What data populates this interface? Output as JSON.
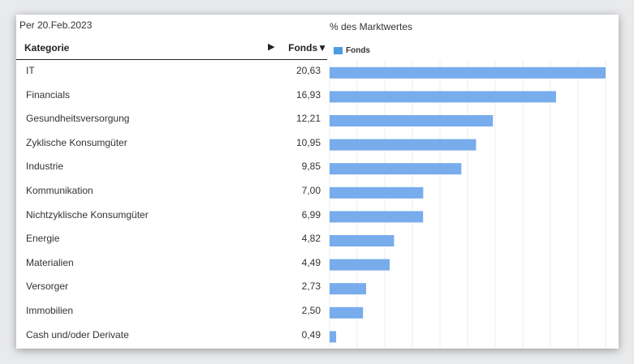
{
  "as_of": "Per 20.Feb.2023",
  "table": {
    "col_category": "Kategorie",
    "col_arrow": "▶",
    "col_fonds": "Fonds▼"
  },
  "chart_data": {
    "type": "bar",
    "title": "% des Marktwertes",
    "series": [
      {
        "name": "Fonds",
        "color": "#78acec"
      }
    ],
    "legend_color": "#4b9be0",
    "categories": [
      "IT",
      "Financials",
      "Gesundheitsversorgung",
      "Zyklische Konsumgüter",
      "Industrie",
      "Kommunikation",
      "Nichtzyklische Konsumgüter",
      "Energie",
      "Materialien",
      "Versorger",
      "Immobilien",
      "Cash und/oder Derivate"
    ],
    "labels": [
      "20,63",
      "16,93",
      "12,21",
      "10,95",
      "9,85",
      "7,00",
      "6,99",
      "4,82",
      "4,49",
      "2,73",
      "2,50",
      "0,49"
    ],
    "values": [
      20.63,
      16.93,
      12.21,
      10.95,
      9.85,
      7.0,
      6.99,
      4.82,
      4.49,
      2.73,
      2.5,
      0.49
    ],
    "orientation": "horizontal",
    "grid": true
  }
}
